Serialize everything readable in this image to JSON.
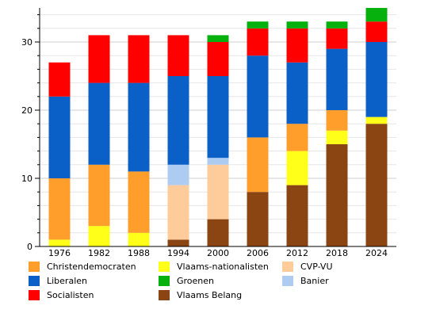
{
  "chart_data": {
    "type": "bar",
    "stacked": true,
    "categories": [
      "1976",
      "1982",
      "1988",
      "1994",
      "2000",
      "2006",
      "2012",
      "2018",
      "2024"
    ],
    "ylim": [
      0,
      35
    ],
    "yticks": [
      0,
      10,
      20,
      30
    ],
    "grid": true,
    "legend_position": "bottom",
    "series": [
      {
        "name": "Vlaams Belang",
        "color": "#8b4513",
        "values": [
          0,
          0,
          0,
          1,
          4,
          8,
          9,
          15,
          18
        ]
      },
      {
        "name": "CVP-VU",
        "color": "#fdcc9a",
        "values": [
          0,
          0,
          0,
          8,
          8,
          0,
          0,
          0,
          0
        ]
      },
      {
        "name": "Vlaams-nationalisten",
        "color": "#ffff1a",
        "values": [
          1,
          3,
          2,
          0,
          0,
          0,
          5,
          2,
          1
        ]
      },
      {
        "name": "Christendemocraten",
        "color": "#ff9e2a",
        "values": [
          9,
          9,
          9,
          0,
          0,
          8,
          4,
          3,
          0
        ]
      },
      {
        "name": "Banier",
        "color": "#aecbf2",
        "values": [
          0,
          0,
          0,
          3,
          1,
          0,
          0,
          0,
          0
        ]
      },
      {
        "name": "Liberalen",
        "color": "#0b60c8",
        "values": [
          12,
          12,
          13,
          13,
          12,
          12,
          9,
          9,
          11
        ]
      },
      {
        "name": "Socialisten",
        "color": "#ff0000",
        "values": [
          5,
          7,
          7,
          6,
          5,
          4,
          5,
          3,
          3
        ]
      },
      {
        "name": "Groenen",
        "color": "#06b00d",
        "values": [
          0,
          0,
          0,
          0,
          1,
          1,
          1,
          1,
          2
        ]
      }
    ],
    "legend_order": [
      "Christendemocraten",
      "Vlaams-nationalisten",
      "CVP-VU",
      "Liberalen",
      "Groenen",
      "Banier",
      "Socialisten",
      "Vlaams Belang"
    ]
  }
}
